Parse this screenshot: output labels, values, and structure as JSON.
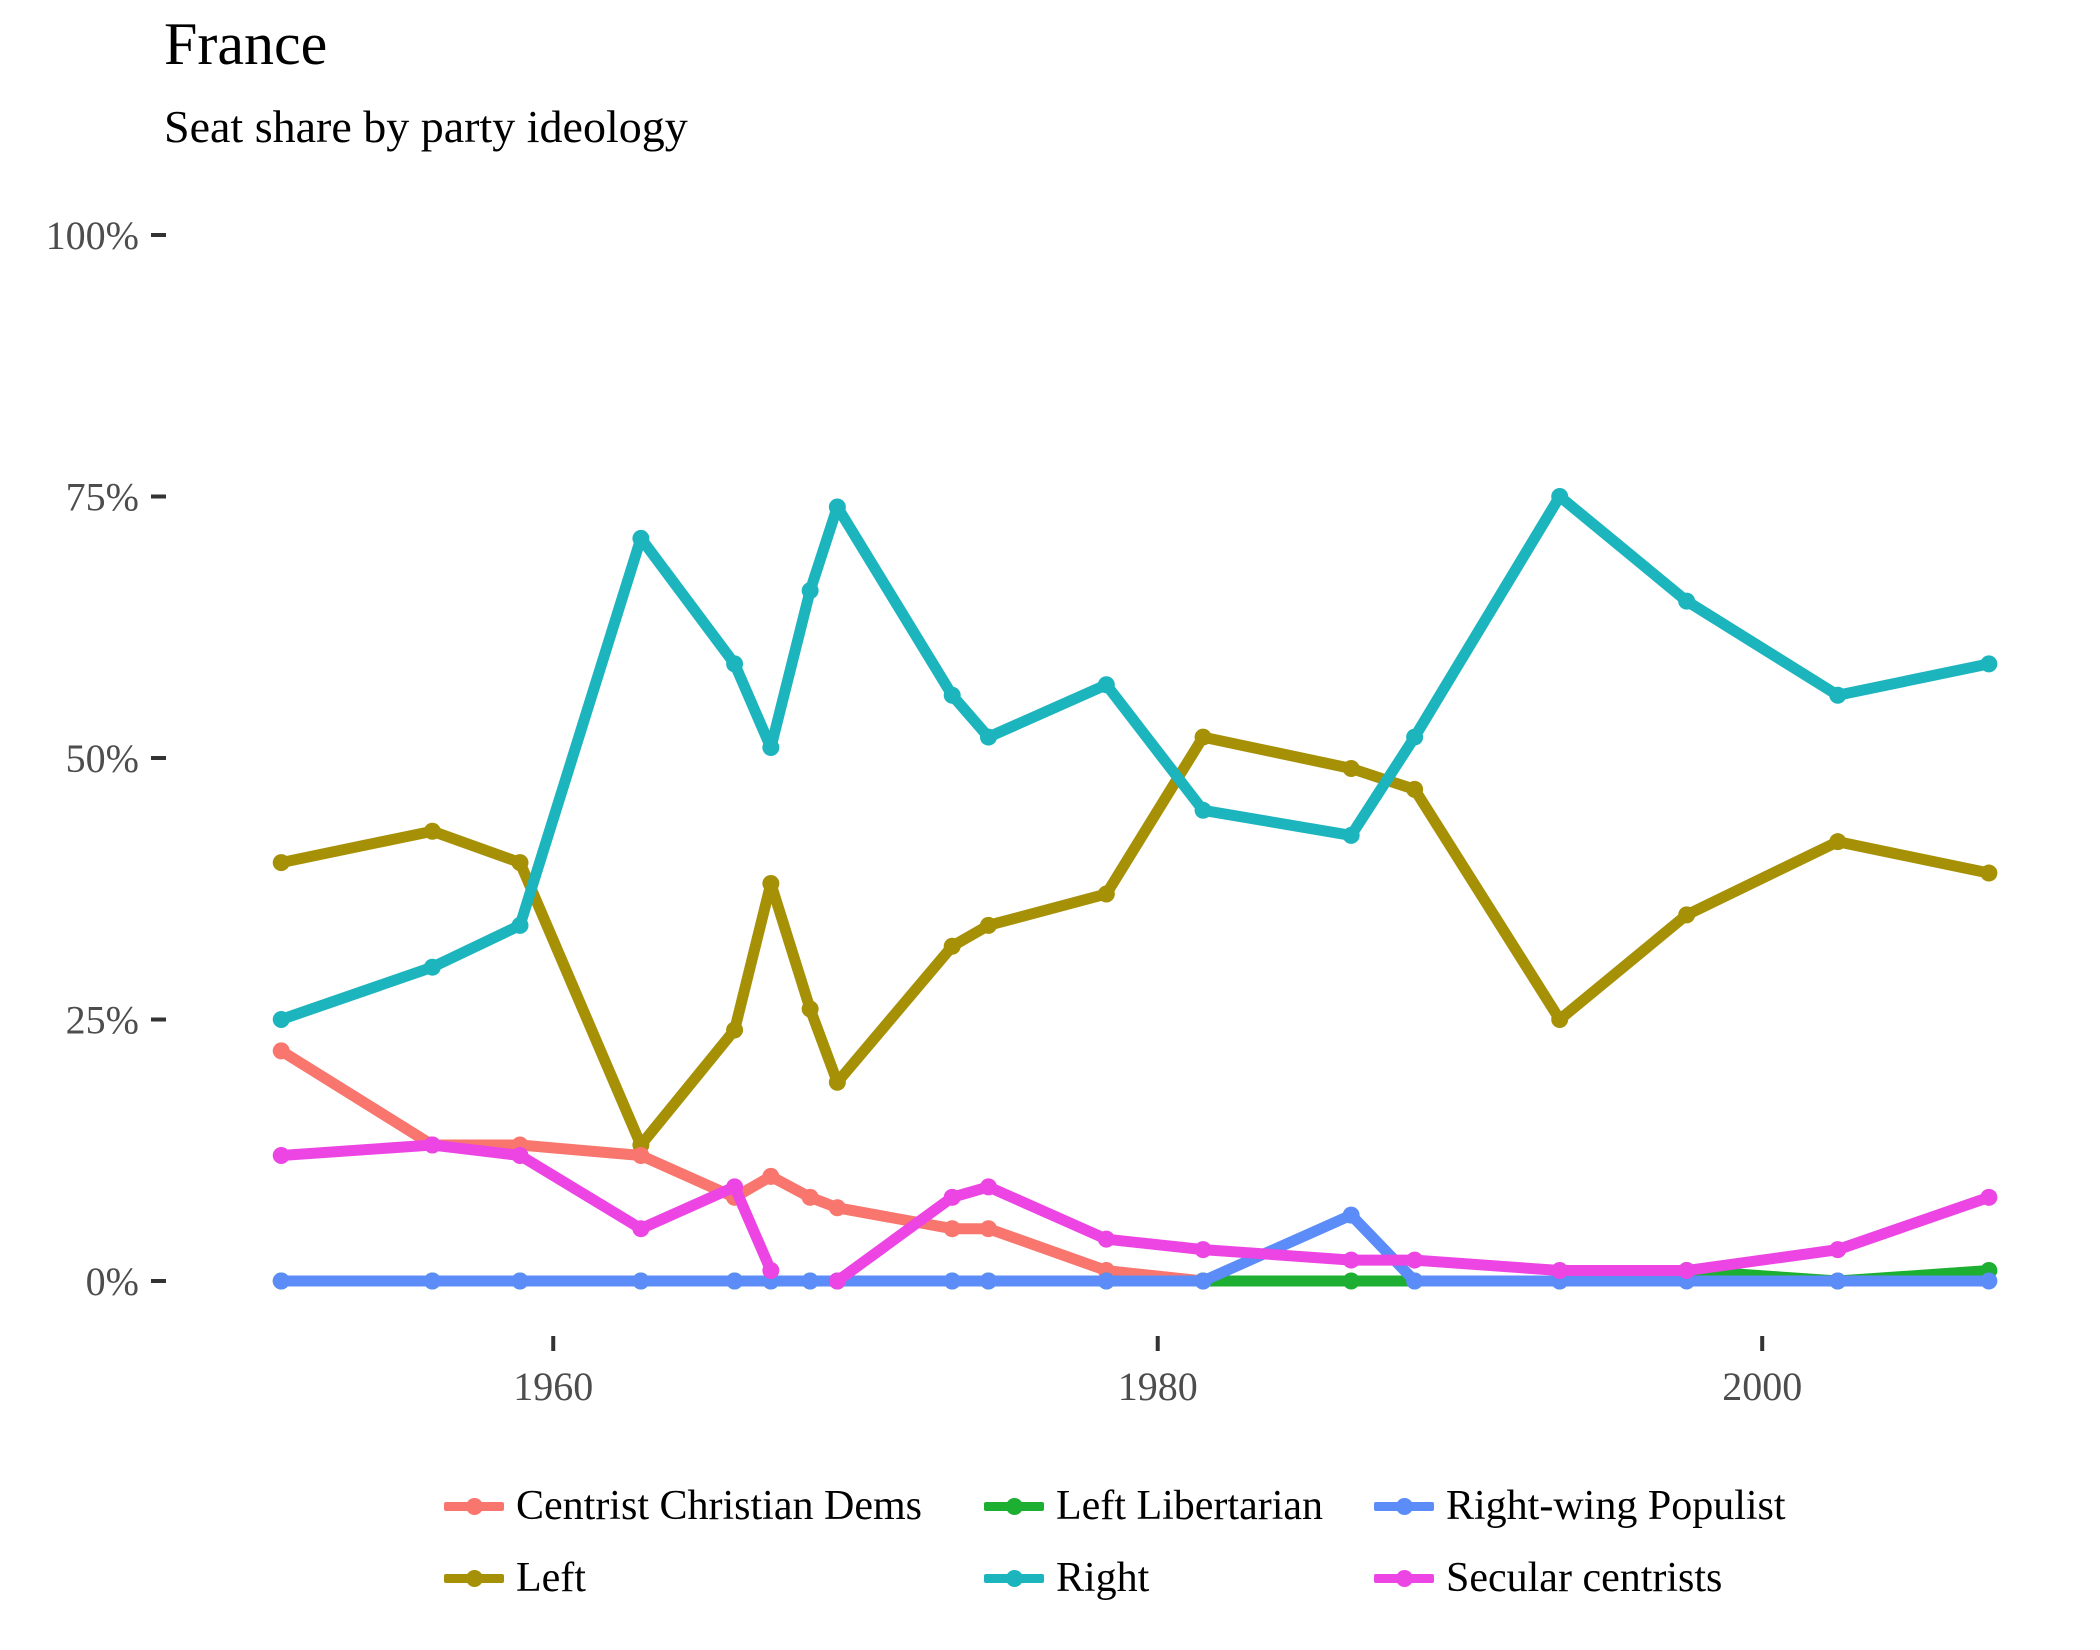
{
  "chart_data": {
    "type": "line",
    "title": "France",
    "subtitle": "Seat share by party ideology",
    "xlabel": "",
    "ylabel": "",
    "xlim": [
      1950,
      2008
    ],
    "ylim": [
      0,
      100
    ],
    "x_ticks": [
      1960,
      1980,
      2000
    ],
    "x_tick_labels": [
      "1960",
      "1980",
      "2000"
    ],
    "y_ticks": [
      0,
      25,
      50,
      75,
      100
    ],
    "y_tick_labels": [
      "0%",
      "25%",
      "50%",
      "75%",
      "100%"
    ],
    "grid": false,
    "legend_position": "bottom",
    "x": [
      1951,
      1956,
      1958.9,
      1962.9,
      1966,
      1967.2,
      1968.5,
      1969.4,
      1973.2,
      1974.4,
      1978.3,
      1981.5,
      1986.4,
      1988.5,
      1993.3,
      1997.5,
      2002.5,
      2007.5
    ],
    "series": [
      {
        "name": "Centrist Christian Dems",
        "color": "#F8766D",
        "values": [
          22,
          13,
          13,
          12,
          8,
          10,
          8,
          7,
          5,
          5,
          1,
          0,
          null,
          null,
          null,
          null,
          null,
          null
        ]
      },
      {
        "name": "Left Libertarian",
        "color": "#1DAF31",
        "values": [
          0,
          0,
          0,
          0,
          0,
          0,
          0,
          0,
          0,
          0,
          0,
          0,
          0,
          0,
          0,
          1,
          0,
          1
        ]
      },
      {
        "name": "Right-wing Populist",
        "color": "#5B8CF8",
        "values": [
          0,
          0,
          0,
          0,
          0,
          0,
          0,
          0,
          0,
          0,
          0,
          0,
          6.3,
          0,
          0,
          0,
          0,
          0
        ]
      },
      {
        "name": "Left",
        "color": "#A69106",
        "values": [
          40,
          43,
          40,
          13,
          24,
          38,
          26,
          19,
          32,
          34,
          37,
          52,
          49,
          47,
          25,
          35,
          42,
          39
        ]
      },
      {
        "name": "Right",
        "color": "#1CB5BE",
        "values": [
          25,
          30,
          34,
          71,
          59,
          51,
          66,
          74,
          56,
          52,
          57,
          45,
          42.6,
          52,
          75,
          65,
          56,
          59
        ]
      },
      {
        "name": "Secular centrists",
        "color": "#EC45E3",
        "values": [
          12,
          13,
          12,
          5,
          9,
          1,
          null,
          0,
          8,
          9,
          4,
          3,
          2,
          2,
          1,
          1,
          3,
          8
        ]
      }
    ],
    "legend_rows": [
      [
        "Centrist Christian Dems",
        "Left Libertarian",
        "Right-wing Populist"
      ],
      [
        "Left",
        "Right",
        "Secular centrists"
      ]
    ],
    "draw_order": [
      "Left",
      "Right",
      "Centrist Christian Dems",
      "Left Libertarian",
      "Right-wing Populist",
      "Secular centrists"
    ]
  }
}
